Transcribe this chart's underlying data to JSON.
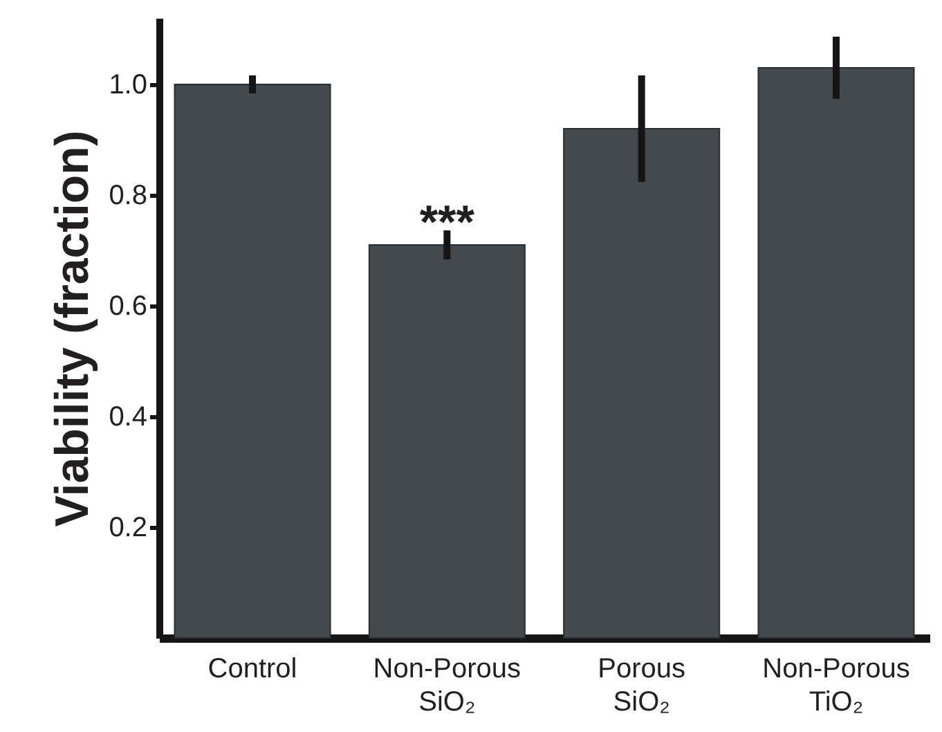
{
  "chart_data": {
    "type": "bar",
    "ylabel": "Viability (fraction)",
    "categories": [
      "Control",
      "Non-Porous SiO₂",
      "Porous SiO₂",
      "Non-Porous TiO₂"
    ],
    "values": [
      1.0,
      0.71,
      0.92,
      1.03
    ],
    "errors": [
      0.01,
      0.02,
      0.09,
      0.05
    ],
    "color": "#43494c",
    "ylim": [
      0,
      1.12
    ],
    "yticks": [
      {
        "value": 0.2,
        "label": "0.2"
      },
      {
        "value": 0.4,
        "label": "0.4"
      },
      {
        "value": 0.6,
        "label": "0.6"
      },
      {
        "value": 0.8,
        "label": "0.8"
      },
      {
        "value": 1,
        "label": "1.0"
      }
    ],
    "annotations": [
      "***"
    ],
    "grid": false
  }
}
